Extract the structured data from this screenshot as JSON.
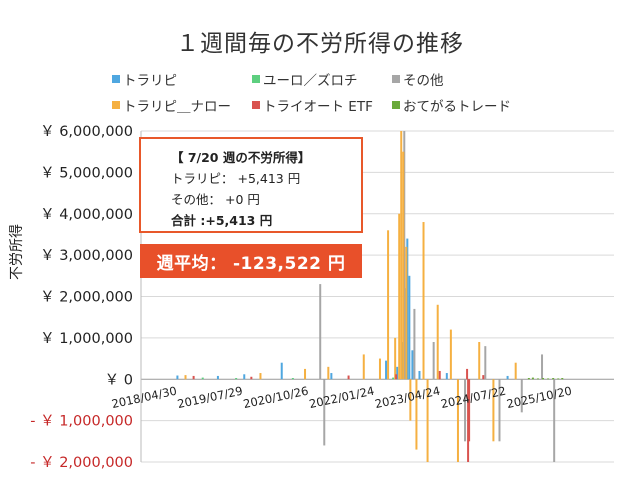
{
  "chart_data": {
    "type": "bar",
    "title": "１週間毎の不労所得の推移",
    "ylabel": "不労所得",
    "ylim": [
      -2000000,
      6000000
    ],
    "y_ticks": [
      {
        "value": 6000000,
        "label": "￥ 6,000,000"
      },
      {
        "value": 5000000,
        "label": "￥ 5,000,000"
      },
      {
        "value": 4000000,
        "label": "￥ 4,000,000"
      },
      {
        "value": 3000000,
        "label": "￥ 3,000,000"
      },
      {
        "value": 2000000,
        "label": "￥ 2,000,000"
      },
      {
        "value": 1000000,
        "label": "￥ 1,000,000"
      },
      {
        "value": 0,
        "label": "￥ 0"
      },
      {
        "value": -1000000,
        "label": "- ￥ 1,000,000"
      },
      {
        "value": -2000000,
        "label": "- ￥ 2,000,000"
      }
    ],
    "x_ticks": [
      "2018/04/30",
      "2019/07/29",
      "2020/10/26",
      "2022/01/24",
      "2023/04/24",
      "2024/07/22",
      "2025/10/20"
    ],
    "grid": true,
    "legend_position": "top",
    "series": [
      {
        "name": "トラリピ",
        "color": "#4fa7e0",
        "points": [
          [
            "2018/12/10",
            90000
          ],
          [
            "2019/09/16",
            80000
          ],
          [
            "2020/03/16",
            120000
          ],
          [
            "2020/11/30",
            400000
          ],
          [
            "2021/11/08",
            150000
          ],
          [
            "2022/11/21",
            450000
          ],
          [
            "2023/02/06",
            300000
          ],
          [
            "2023/03/13",
            900000
          ],
          [
            "2023/04/03",
            2200000
          ],
          [
            "2023/04/17",
            3400000
          ],
          [
            "2023/05/01",
            2500000
          ],
          [
            "2023/05/22",
            700000
          ],
          [
            "2023/07/10",
            200000
          ],
          [
            "2024/01/15",
            150000
          ],
          [
            "2025/03/10",
            80000
          ]
        ]
      },
      {
        "name": "ユーロ／ズロチ",
        "color": "#5dcf7f",
        "points": [
          [
            "2019/06/03",
            40000
          ],
          [
            "2020/01/20",
            30000
          ],
          [
            "2021/02/15",
            30000
          ],
          [
            "2023/01/09",
            40000
          ]
        ]
      },
      {
        "name": "その他",
        "color": "#a6a6a6",
        "points": [
          [
            "2021/08/23",
            2300000
          ],
          [
            "2021/09/20",
            -1600000
          ],
          [
            "2023/03/27",
            6000000
          ],
          [
            "2023/06/05",
            1700000
          ],
          [
            "2023/10/16",
            900000
          ],
          [
            "2024/05/20",
            -1500000
          ],
          [
            "2024/10/07",
            800000
          ],
          [
            "2025/01/13",
            -1500000
          ],
          [
            "2025/06/16",
            -800000
          ],
          [
            "2025/11/03",
            600000
          ],
          [
            "2026/01/26",
            -2000000
          ]
        ]
      },
      {
        "name": "トラリピ＿ナロー",
        "color": "#f5b041",
        "points": [
          [
            "2019/02/04",
            100000
          ],
          [
            "2020/07/06",
            150000
          ],
          [
            "2021/05/10",
            250000
          ],
          [
            "2021/10/18",
            300000
          ],
          [
            "2022/06/20",
            600000
          ],
          [
            "2022/10/10",
            500000
          ],
          [
            "2022/12/05",
            3600000
          ],
          [
            "2023/01/23",
            1000000
          ],
          [
            "2023/02/20",
            4000000
          ],
          [
            "2023/03/06",
            6000000
          ],
          [
            "2023/03/20",
            5500000
          ],
          [
            "2023/04/10",
            3200000
          ],
          [
            "2023/05/08",
            -1000000
          ],
          [
            "2023/06/19",
            -1700000
          ],
          [
            "2023/08/07",
            3800000
          ],
          [
            "2023/09/04",
            -2000000
          ],
          [
            "2023/11/13",
            1800000
          ],
          [
            "2024/02/12",
            1200000
          ],
          [
            "2024/04/01",
            -2000000
          ],
          [
            "2024/08/26",
            900000
          ],
          [
            "2024/12/02",
            -1500000
          ],
          [
            "2025/05/05",
            400000
          ]
        ]
      },
      {
        "name": "トライオート ETF",
        "color": "#d9534f",
        "points": [
          [
            "2019/04/01",
            80000
          ],
          [
            "2020/05/04",
            60000
          ],
          [
            "2022/03/07",
            90000
          ],
          [
            "2023/01/30",
            120000
          ],
          [
            "2023/11/27",
            200000
          ],
          [
            "2024/06/03",
            250000
          ],
          [
            "2024/06/10",
            -2000000
          ],
          [
            "2024/06/17",
            -1500000
          ],
          [
            "2024/09/23",
            100000
          ]
        ]
      },
      {
        "name": "おてがるトレード",
        "color": "#6aaa3a",
        "points": [
          [
            "2025/08/04",
            30000
          ],
          [
            "2025/09/01",
            40000
          ],
          [
            "2025/10/06",
            20000
          ],
          [
            "2025/11/10",
            30000
          ],
          [
            "2025/12/15",
            20000
          ],
          [
            "2026/01/19",
            30000
          ],
          [
            "2026/02/23",
            20000
          ],
          [
            "2026/03/23",
            30000
          ]
        ]
      }
    ]
  },
  "infobox": {
    "heading": "【 7/20 週の不労所得】",
    "line1": "トラリピ：  +5,413 円",
    "line2": "その他：  +0 円",
    "total": "合計 :+5,413 円"
  },
  "average": "週平均：  -123,522 円"
}
